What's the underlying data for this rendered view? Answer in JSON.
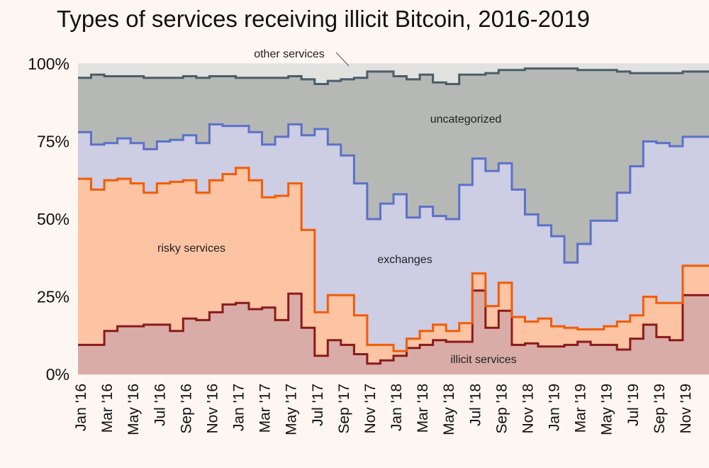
{
  "chart_data": {
    "type": "area",
    "stacked": true,
    "step": true,
    "title": "Types of services receiving illicit Bitcoin, 2016-2019",
    "xlabel": "",
    "ylabel": "",
    "ylim": [
      0,
      100
    ],
    "y_unit": "%",
    "yticks": [
      "0%",
      "25%",
      "50%",
      "75%",
      "100%"
    ],
    "xtick_labels": [
      "Jan '16",
      "Mar '16",
      "May '16",
      "Jul '16",
      "Sep '16",
      "Nov '16",
      "Jan '17",
      "Mar '17",
      "May '17",
      "Jul '17",
      "Sep '17",
      "Nov '17",
      "Jan '18",
      "Mar '18",
      "May '18",
      "Jul '18",
      "Sep '18",
      "Nov '18",
      "Jan '19",
      "Mar '19",
      "May '19",
      "Jul '19",
      "Sep '19",
      "Nov '19"
    ],
    "x": [
      "Jan 2016",
      "Feb 2016",
      "Mar 2016",
      "Apr 2016",
      "May 2016",
      "Jun 2016",
      "Jul 2016",
      "Aug 2016",
      "Sep 2016",
      "Oct 2016",
      "Nov 2016",
      "Dec 2016",
      "Jan 2017",
      "Feb 2017",
      "Mar 2017",
      "Apr 2017",
      "May 2017",
      "Jun 2017",
      "Jul 2017",
      "Aug 2017",
      "Sep 2017",
      "Oct 2017",
      "Nov 2017",
      "Dec 2017",
      "Jan 2018",
      "Feb 2018",
      "Mar 2018",
      "Apr 2018",
      "May 2018",
      "Jun 2018",
      "Jul 2018",
      "Aug 2018",
      "Sep 2018",
      "Oct 2018",
      "Nov 2018",
      "Dec 2018",
      "Jan 2019",
      "Feb 2019",
      "Mar 2019",
      "Apr 2019",
      "May 2019",
      "Jun 2019",
      "Jul 2019",
      "Aug 2019",
      "Sep 2019",
      "Oct 2019",
      "Nov 2019",
      "Dec 2019"
    ],
    "series": [
      {
        "name": "illicit services",
        "color": "#8b1a1a",
        "fill": "#d9aca8",
        "top": [
          9.5,
          9.5,
          14,
          15.5,
          15.5,
          16,
          16,
          14,
          18,
          17.5,
          20,
          22.5,
          23,
          21,
          21.5,
          17.5,
          26,
          15,
          6,
          11,
          9.5,
          6.5,
          3.5,
          4.5,
          6,
          8.5,
          9.5,
          11,
          10.5,
          10.5,
          27,
          15,
          20.5,
          9.5,
          10,
          9,
          9,
          9.5,
          10.5,
          9.5,
          9.5,
          8,
          11.5,
          16,
          12,
          11,
          25.5,
          25.5
        ]
      },
      {
        "name": "risky services",
        "color": "#f25c05",
        "fill": "#fdc4a4",
        "top": [
          63,
          59.5,
          62.5,
          63,
          61.5,
          58.5,
          61.5,
          62,
          62.5,
          58.5,
          62.5,
          64.5,
          66.5,
          62.5,
          57,
          57.5,
          61.5,
          46.5,
          20,
          25.5,
          25.5,
          19,
          9.5,
          9.5,
          7.5,
          11.5,
          14,
          16,
          14,
          16.5,
          32.5,
          22,
          29.5,
          18.5,
          17,
          18,
          15.5,
          15,
          14.5,
          14.5,
          15.5,
          17,
          19,
          25,
          23,
          23,
          35,
          35
        ]
      },
      {
        "name": "exchanges",
        "color": "#5b72c8",
        "fill": "#cdcde3",
        "top": [
          78,
          74,
          74.5,
          76,
          74.5,
          72.5,
          75,
          75.5,
          77,
          74.5,
          80.5,
          80,
          80,
          78,
          74,
          76.5,
          80.5,
          77,
          79,
          74,
          70.5,
          61.5,
          50,
          55,
          58,
          50.5,
          54,
          51,
          50,
          61,
          69.5,
          65.5,
          68,
          59.5,
          51.5,
          48,
          44.5,
          36,
          42,
          49.5,
          49.5,
          58.5,
          67,
          75,
          74.5,
          73.5,
          76.5,
          76.5
        ]
      },
      {
        "name": "uncategorized",
        "color": "#4a5d6a",
        "fill": "#b6b8b5",
        "top": [
          95.5,
          96.5,
          96,
          96,
          96,
          95.5,
          95.5,
          95.5,
          96,
          95.5,
          96,
          96,
          95.5,
          95.5,
          95.5,
          95.5,
          96,
          95,
          93.5,
          94.5,
          95,
          95.5,
          97.5,
          97.5,
          96,
          95,
          96.5,
          94,
          93.5,
          96.5,
          96.5,
          97,
          98,
          98,
          98.5,
          98.5,
          98.5,
          98.5,
          98,
          98,
          98,
          97.5,
          97,
          97,
          97,
          97,
          97.5,
          97.5
        ]
      },
      {
        "name": "other services",
        "color": "#4a5d6a",
        "fill": "#e1e1e0",
        "top": [
          100,
          100,
          100,
          100,
          100,
          100,
          100,
          100,
          100,
          100,
          100,
          100,
          100,
          100,
          100,
          100,
          100,
          100,
          100,
          100,
          100,
          100,
          100,
          100,
          100,
          100,
          100,
          100,
          100,
          100,
          100,
          100,
          100,
          100,
          100,
          100,
          100,
          100,
          100,
          100,
          100,
          100,
          100,
          100,
          100,
          100,
          100,
          100
        ]
      }
    ]
  }
}
